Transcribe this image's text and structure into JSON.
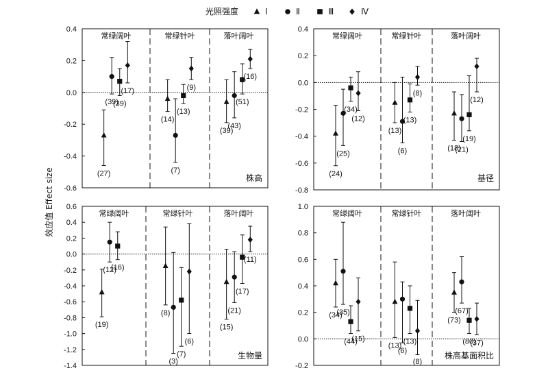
{
  "legend": {
    "title": "光照强度",
    "items": [
      {
        "label": "Ⅰ",
        "marker": "triangle"
      },
      {
        "label": "Ⅱ",
        "marker": "circle"
      },
      {
        "label": "Ⅲ",
        "marker": "square"
      },
      {
        "label": "Ⅳ",
        "marker": "diamond"
      }
    ]
  },
  "y_label": "效应值 Effect size",
  "chart_data": [
    {
      "type": "scatter",
      "title": "株高",
      "ylim": [
        -0.6,
        0.4
      ],
      "yticks": [
        -0.6,
        -0.4,
        -0.2,
        0,
        0.2,
        0.4
      ],
      "groups": [
        "常绿阔叶",
        "常绿针叶",
        "落叶阔叶"
      ],
      "series": [
        {
          "marker": "triangle",
          "values": [
            -0.27,
            -0.04,
            -0.06
          ],
          "low": [
            -0.46,
            -0.12,
            -0.19
          ],
          "high": [
            -0.11,
            0.08,
            0.08
          ],
          "n": [
            "(27)",
            "(14)",
            "(39)"
          ]
        },
        {
          "marker": "circle",
          "values": [
            0.1,
            -0.27,
            -0.02
          ],
          "low": [
            -0.01,
            -0.44,
            -0.16
          ],
          "high": [
            0.22,
            -0.04,
            0.13
          ],
          "n": [
            "(39)",
            "(7)",
            "(43)"
          ]
        },
        {
          "marker": "square",
          "values": [
            0.07,
            -0.02,
            0.08
          ],
          "low": [
            -0.02,
            -0.07,
            -0.01
          ],
          "high": [
            0.15,
            0.05,
            0.18
          ],
          "n": [
            "(39)",
            "(13)",
            "(51)"
          ]
        },
        {
          "marker": "diamond",
          "values": [
            0.17,
            0.15,
            0.21
          ],
          "low": [
            0.06,
            0.08,
            0.15
          ],
          "high": [
            0.32,
            0.22,
            0.27
          ],
          "n": [
            "(17)",
            "(9)",
            "(16)"
          ]
        }
      ]
    },
    {
      "type": "scatter",
      "title": "基径",
      "ylim": [
        -0.8,
        0.4
      ],
      "yticks": [
        -0.8,
        -0.6,
        -0.4,
        -0.2,
        0,
        0.2,
        0.4
      ],
      "groups": [
        "常绿阔叶",
        "常绿针叶",
        "落叶阔叶"
      ],
      "series": [
        {
          "marker": "triangle",
          "values": [
            -0.38,
            -0.15,
            -0.23
          ],
          "low": [
            -0.62,
            -0.3,
            -0.43
          ],
          "high": [
            -0.17,
            0.0,
            -0.07
          ],
          "n": [
            "(24)",
            "(13)",
            "(18)"
          ]
        },
        {
          "marker": "circle",
          "values": [
            -0.23,
            -0.29,
            -0.27
          ],
          "low": [
            -0.47,
            -0.45,
            -0.44
          ],
          "high": [
            -0.05,
            0.04,
            -0.09
          ],
          "n": [
            "(25)",
            "(6)",
            "(21)"
          ]
        },
        {
          "marker": "square",
          "values": [
            -0.04,
            -0.13,
            -0.24
          ],
          "low": [
            -0.14,
            -0.22,
            -0.36
          ],
          "high": [
            0.04,
            -0.01,
            0.05
          ],
          "n": [
            "(34)",
            "(13)",
            "(19)"
          ]
        },
        {
          "marker": "diamond",
          "values": [
            -0.08,
            0.04,
            0.12
          ],
          "low": [
            -0.21,
            -0.02,
            -0.07
          ],
          "high": [
            0.08,
            0.12,
            0.18
          ],
          "n": [
            "(12)",
            "(8)",
            "(12)"
          ]
        }
      ]
    },
    {
      "type": "scatter",
      "title": "生物量",
      "ylim": [
        -1.4,
        0.6
      ],
      "yticks": [
        -1.4,
        -1.2,
        -1.0,
        -0.8,
        -0.6,
        -0.4,
        -0.2,
        0,
        0.2,
        0.4,
        0.6
      ],
      "groups": [
        "常绿阔叶",
        "常绿针叶",
        "落叶阔叶"
      ],
      "series": [
        {
          "marker": "triangle",
          "values": [
            -0.48,
            -0.15,
            -0.35
          ],
          "low": [
            -0.79,
            -0.64,
            -0.82
          ],
          "high": [
            -0.19,
            0.34,
            0.06
          ],
          "n": [
            "(19)",
            "(8)",
            "(15)"
          ]
        },
        {
          "marker": "circle",
          "values": [
            0.15,
            -0.67,
            -0.29
          ],
          "low": [
            -0.1,
            -1.25,
            -0.61
          ],
          "high": [
            0.4,
            0.02,
            0.03
          ],
          "n": [
            "(12)",
            "(3)",
            "(21)"
          ]
        },
        {
          "marker": "square",
          "values": [
            0.1,
            -0.58,
            -0.04
          ],
          "low": [
            -0.07,
            -1.16,
            -0.37
          ],
          "high": [
            0.28,
            -0.17,
            0.24
          ],
          "n": [
            "(16)",
            "(7)",
            "(17)"
          ]
        },
        {
          "marker": "diamond",
          "values": [
            null,
            -0.22,
            0.18
          ],
          "low": [
            null,
            -1.0,
            0.03
          ],
          "high": [
            null,
            0.38,
            0.35
          ],
          "n": [
            "",
            "(6)",
            "(11)"
          ]
        }
      ]
    },
    {
      "type": "scatter",
      "title": "株高基面积比",
      "ylim": [
        -0.2,
        1.0
      ],
      "yticks": [
        -0.2,
        0,
        0.2,
        0.4,
        0.6,
        0.8,
        1.0
      ],
      "groups": [
        "常绿阔叶",
        "常绿针叶",
        "落叶阔叶"
      ],
      "series": [
        {
          "marker": "triangle",
          "values": [
            0.42,
            0.28,
            0.35
          ],
          "low": [
            0.24,
            0.01,
            0.2
          ],
          "high": [
            0.6,
            0.58,
            0.5
          ],
          "n": [
            "(34)",
            "(13)",
            "(73)"
          ]
        },
        {
          "marker": "circle",
          "values": [
            0.51,
            0.3,
            0.43
          ],
          "low": [
            0.26,
            -0.03,
            0.27
          ],
          "high": [
            0.88,
            0.43,
            0.62
          ],
          "n": [
            "(35)",
            "(6)",
            "(67)"
          ]
        },
        {
          "marker": "square",
          "values": [
            0.13,
            0.23,
            0.14
          ],
          "low": [
            0.04,
            0.04,
            0.04
          ],
          "high": [
            0.25,
            0.4,
            0.23
          ],
          "n": [
            "(44)",
            "(13)",
            "(80)"
          ]
        },
        {
          "marker": "diamond",
          "values": [
            0.28,
            0.06,
            0.15
          ],
          "low": [
            0.06,
            -0.12,
            0.03
          ],
          "high": [
            0.46,
            0.29,
            0.27
          ],
          "n": [
            "(15)",
            "(8)",
            "(37)"
          ]
        }
      ]
    }
  ]
}
